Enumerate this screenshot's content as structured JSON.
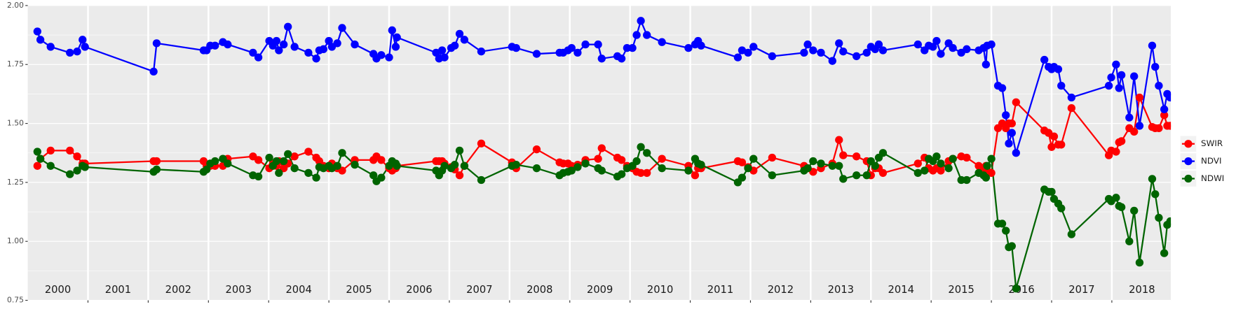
{
  "chart_data": {
    "type": "line",
    "x": [
      2000.16,
      2000.21,
      2000.38,
      2000.7,
      2000.82,
      2000.91,
      2000.95,
      2002.09,
      2002.14,
      2002.92,
      2002.97,
      2003.03,
      2003.11,
      2003.24,
      2003.32,
      2003.74,
      2003.83,
      2004.01,
      2004.07,
      2004.13,
      2004.17,
      2004.25,
      2004.32,
      2004.43,
      2004.66,
      2004.79,
      2004.84,
      2004.91,
      2005.0,
      2005.05,
      2005.14,
      2005.22,
      2005.43,
      2005.74,
      2005.79,
      2005.87,
      2006.0,
      2006.05,
      2006.11,
      2006.13,
      2006.78,
      2006.83,
      2006.88,
      2006.92,
      2007.03,
      2007.09,
      2007.17,
      2007.25,
      2007.53,
      2008.04,
      2008.11,
      2008.45,
      2008.83,
      2008.89,
      2008.97,
      2009.03,
      2009.13,
      2009.26,
      2009.47,
      2009.53,
      2009.79,
      2009.86,
      2009.95,
      2010.04,
      2010.11,
      2010.18,
      2010.28,
      2010.53,
      2010.97,
      2011.08,
      2011.13,
      2011.18,
      2011.79,
      2011.86,
      2011.96,
      2012.05,
      2012.36,
      2012.89,
      2012.95,
      2013.04,
      2013.17,
      2013.36,
      2013.47,
      2013.54,
      2013.76,
      2013.93,
      2014.0,
      2014.07,
      2014.13,
      2014.2,
      2014.78,
      2014.89,
      2014.96,
      2015.03,
      2015.09,
      2015.16,
      2015.29,
      2015.36,
      2015.5,
      2015.59,
      2015.79,
      2015.87,
      2015.91,
      2015.93,
      2016.0,
      2016.11,
      2016.18,
      2016.24,
      2016.29,
      2016.34,
      2016.41,
      2016.88,
      2016.95,
      2017.0,
      2017.04,
      2017.11,
      2017.16,
      2017.33,
      2017.95,
      2017.99,
      2018.07,
      2018.12,
      2018.16,
      2018.29,
      2018.37,
      2018.46,
      2018.67,
      2018.72,
      2018.78,
      2018.87,
      2018.92,
      2018.97
    ],
    "series": [
      {
        "name": "SWIR",
        "color": "#ff0000",
        "values": [
          1.32,
          1.35,
          1.385,
          1.385,
          1.36,
          1.33,
          1.33,
          1.34,
          1.34,
          1.34,
          1.32,
          1.32,
          1.32,
          1.32,
          1.35,
          1.36,
          1.345,
          1.31,
          1.33,
          1.32,
          1.34,
          1.31,
          1.33,
          1.36,
          1.38,
          1.355,
          1.34,
          1.32,
          1.31,
          1.33,
          1.31,
          1.3,
          1.345,
          1.345,
          1.36,
          1.345,
          1.31,
          1.3,
          1.31,
          1.32,
          1.34,
          1.34,
          1.34,
          1.33,
          1.315,
          1.305,
          1.28,
          1.32,
          1.415,
          1.335,
          1.31,
          1.39,
          1.335,
          1.33,
          1.33,
          1.32,
          1.325,
          1.345,
          1.35,
          1.395,
          1.355,
          1.345,
          1.32,
          1.31,
          1.295,
          1.29,
          1.29,
          1.35,
          1.32,
          1.28,
          1.31,
          1.31,
          1.34,
          1.335,
          1.315,
          1.3,
          1.355,
          1.32,
          1.31,
          1.295,
          1.31,
          1.33,
          1.43,
          1.365,
          1.36,
          1.34,
          1.28,
          1.31,
          1.31,
          1.29,
          1.33,
          1.355,
          1.31,
          1.3,
          1.31,
          1.3,
          1.34,
          1.35,
          1.36,
          1.355,
          1.32,
          1.31,
          1.32,
          1.3,
          1.29,
          1.48,
          1.5,
          1.48,
          1.5,
          1.5,
          1.59,
          1.47,
          1.46,
          1.4,
          1.445,
          1.41,
          1.41,
          1.565,
          1.365,
          1.385,
          1.38,
          1.42,
          1.425,
          1.48,
          1.465,
          1.61,
          1.485,
          1.48,
          1.48,
          1.535,
          1.49,
          1.49
        ]
      },
      {
        "name": "NDVI",
        "color": "#0000ff",
        "values": [
          1.89,
          1.855,
          1.825,
          1.8,
          1.805,
          1.855,
          1.825,
          1.72,
          1.84,
          1.81,
          1.81,
          1.83,
          1.83,
          1.845,
          1.835,
          1.8,
          1.78,
          1.85,
          1.83,
          1.85,
          1.81,
          1.835,
          1.91,
          1.825,
          1.8,
          1.775,
          1.81,
          1.815,
          1.85,
          1.825,
          1.84,
          1.905,
          1.835,
          1.795,
          1.775,
          1.79,
          1.78,
          1.895,
          1.825,
          1.865,
          1.8,
          1.775,
          1.81,
          1.78,
          1.82,
          1.83,
          1.88,
          1.855,
          1.805,
          1.825,
          1.82,
          1.795,
          1.8,
          1.8,
          1.81,
          1.82,
          1.8,
          1.835,
          1.835,
          1.775,
          1.785,
          1.775,
          1.82,
          1.82,
          1.875,
          1.935,
          1.875,
          1.845,
          1.82,
          1.835,
          1.85,
          1.83,
          1.78,
          1.81,
          1.8,
          1.825,
          1.785,
          1.8,
          1.835,
          1.81,
          1.8,
          1.765,
          1.84,
          1.805,
          1.785,
          1.8,
          1.825,
          1.815,
          1.835,
          1.81,
          1.835,
          1.81,
          1.83,
          1.825,
          1.85,
          1.795,
          1.84,
          1.82,
          1.8,
          1.815,
          1.81,
          1.82,
          1.75,
          1.83,
          1.835,
          1.66,
          1.65,
          1.535,
          1.415,
          1.46,
          1.375,
          1.77,
          1.74,
          1.73,
          1.74,
          1.73,
          1.66,
          1.61,
          1.66,
          1.695,
          1.75,
          1.65,
          1.705,
          1.525,
          1.7,
          1.49,
          1.83,
          1.74,
          1.66,
          1.56,
          1.625,
          1.61
        ]
      },
      {
        "name": "NDWI",
        "color": "#006400",
        "values": [
          1.38,
          1.35,
          1.32,
          1.285,
          1.3,
          1.32,
          1.315,
          1.295,
          1.305,
          1.295,
          1.305,
          1.33,
          1.34,
          1.35,
          1.33,
          1.28,
          1.275,
          1.355,
          1.32,
          1.34,
          1.29,
          1.34,
          1.37,
          1.31,
          1.29,
          1.27,
          1.315,
          1.31,
          1.32,
          1.31,
          1.32,
          1.375,
          1.325,
          1.28,
          1.255,
          1.27,
          1.32,
          1.34,
          1.33,
          1.32,
          1.3,
          1.28,
          1.3,
          1.32,
          1.31,
          1.325,
          1.385,
          1.32,
          1.26,
          1.32,
          1.325,
          1.31,
          1.28,
          1.29,
          1.295,
          1.3,
          1.315,
          1.33,
          1.31,
          1.3,
          1.275,
          1.285,
          1.31,
          1.32,
          1.34,
          1.4,
          1.375,
          1.31,
          1.3,
          1.35,
          1.33,
          1.325,
          1.25,
          1.27,
          1.31,
          1.35,
          1.28,
          1.3,
          1.31,
          1.34,
          1.33,
          1.32,
          1.32,
          1.265,
          1.28,
          1.28,
          1.34,
          1.32,
          1.355,
          1.375,
          1.29,
          1.3,
          1.35,
          1.34,
          1.36,
          1.33,
          1.31,
          1.35,
          1.26,
          1.26,
          1.29,
          1.28,
          1.27,
          1.32,
          1.35,
          1.075,
          1.075,
          1.045,
          0.975,
          0.98,
          0.8,
          1.22,
          1.21,
          1.21,
          1.18,
          1.16,
          1.14,
          1.03,
          1.18,
          1.17,
          1.185,
          1.15,
          1.145,
          1.0,
          1.13,
          0.91,
          1.265,
          1.2,
          1.1,
          0.95,
          1.07,
          1.085
        ]
      }
    ],
    "xlim": [
      2000,
      2018.98
    ],
    "xticks": [
      2001,
      2002,
      2003,
      2004,
      2005,
      2006,
      2007,
      2008,
      2009,
      2010,
      2011,
      2012,
      2013,
      2014,
      2015,
      2016,
      2017,
      2018
    ],
    "year_labels": [
      "2000",
      "2001",
      "2002",
      "2003",
      "2004",
      "2005",
      "2006",
      "2007",
      "2008",
      "2009",
      "2010",
      "2011",
      "2012",
      "2013",
      "2014",
      "2015",
      "2016",
      "2017",
      "2018"
    ],
    "ylim": [
      0.75,
      2
    ],
    "yticks": [
      0.75,
      {
        "value": 1,
        "label": "1.00"
      },
      1.25,
      {
        "value": 1.5,
        "label": "1.50"
      },
      1.75,
      {
        "value": 2,
        "label": "2.00"
      }
    ],
    "grid": true,
    "legend": "right"
  }
}
